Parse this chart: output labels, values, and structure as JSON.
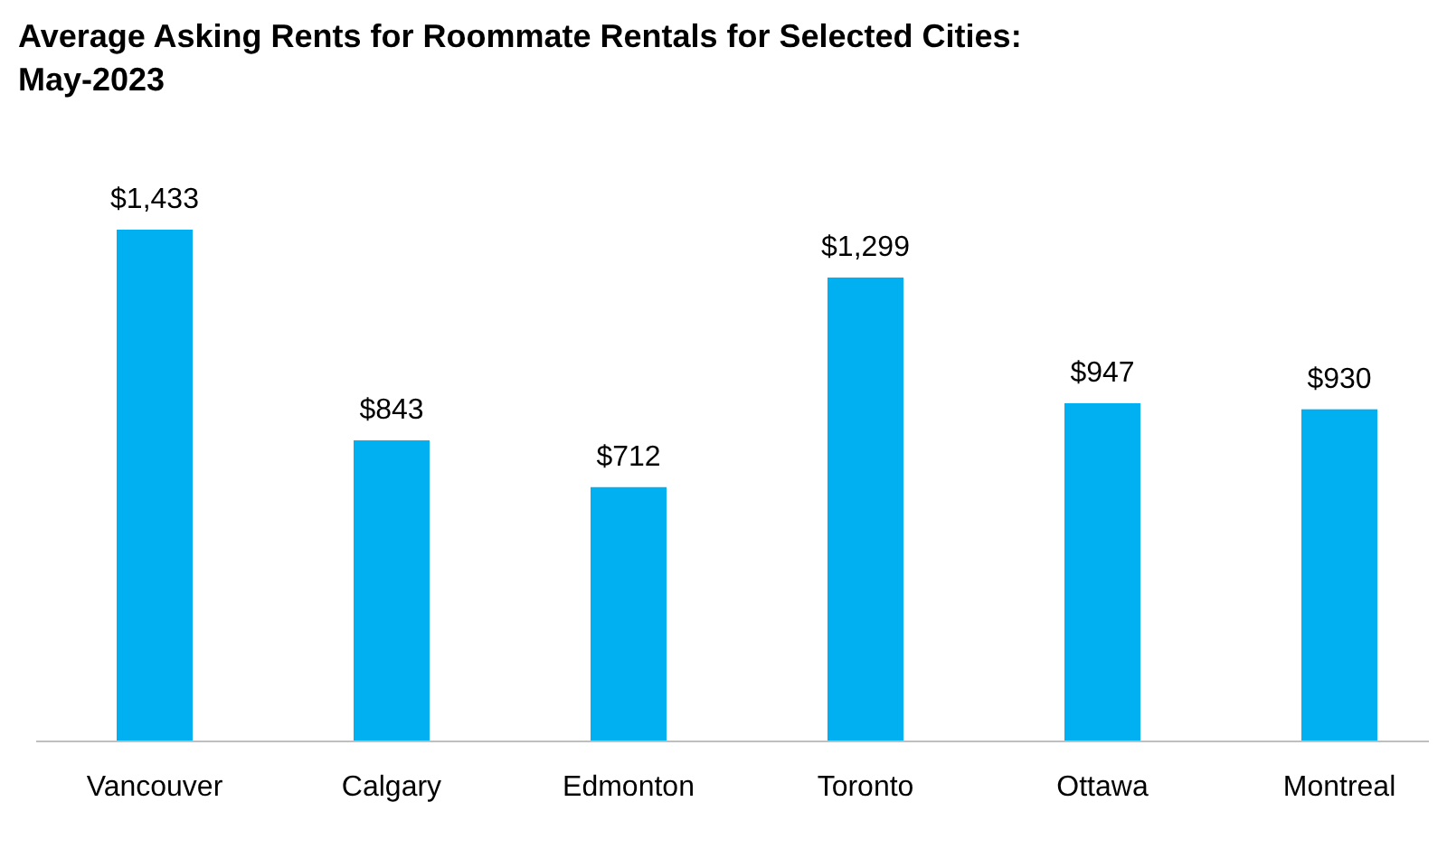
{
  "chart_data": {
    "type": "bar",
    "title": "Average Asking Rents for Roommate Rentals for Selected Cities: May-2023",
    "categories": [
      "Vancouver",
      "Calgary",
      "Edmonton",
      "Toronto",
      "Ottawa",
      "Montreal"
    ],
    "values": [
      1433,
      843,
      712,
      1299,
      947,
      930
    ],
    "value_labels": [
      "$1,433",
      "$843",
      "$712",
      "$1,299",
      "$947",
      "$930"
    ],
    "color": "#00b0f0",
    "ylim": [
      0,
      1433
    ]
  }
}
